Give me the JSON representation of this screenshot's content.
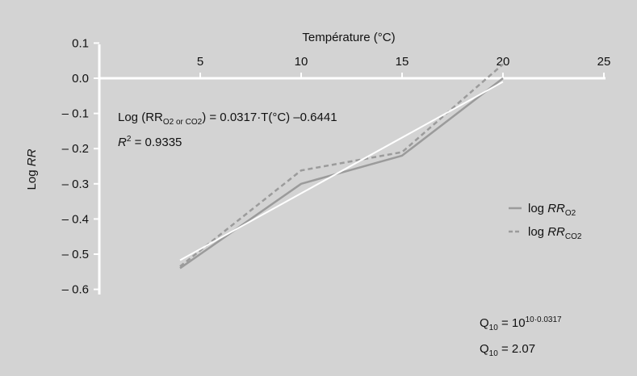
{
  "chart_data": {
    "type": "line",
    "xlabel": "Température (°C)",
    "ylabel_prefix": "Log ",
    "ylabel_italic": "RR",
    "x_axis_position": "top",
    "xlim": [
      0,
      25
    ],
    "ylim": [
      -0.6,
      0.1
    ],
    "x_ticks": [
      5,
      10,
      15,
      20,
      25
    ],
    "y_ticks": [
      0.1,
      0.0,
      -0.1,
      -0.2,
      -0.3,
      -0.4,
      -0.5,
      -0.6
    ],
    "y_tick_labels": [
      "0.1",
      "0.0",
      "– 0.1",
      "– 0.2",
      "– 0.3",
      "– 0.4",
      "– 0.5",
      "– 0.6"
    ],
    "background_color": "#d3d3d3",
    "series": [
      {
        "name_prefix": "log ",
        "name_italic": "RR",
        "name_sub": "O2",
        "style": "solid",
        "color": "#9b9b9b",
        "x": [
          4,
          10,
          15,
          20
        ],
        "y": [
          -0.54,
          -0.3,
          -0.22,
          0.0
        ]
      },
      {
        "name_prefix": "log ",
        "name_italic": "RR",
        "name_sub": "CO2",
        "style": "dashed",
        "color": "#9b9b9b",
        "x": [
          4,
          10,
          15,
          20
        ],
        "y": [
          -0.535,
          -0.262,
          -0.21,
          0.04
        ]
      }
    ],
    "fit_line": {
      "color": "#ffffff",
      "x": [
        4,
        20
      ],
      "y": [
        -0.5173,
        -0.0101
      ]
    },
    "equation": {
      "prefix": "Log (RR",
      "sub": "O2 or CO2",
      "suffix": ") = 0.0317·T(°C) –0.6441"
    },
    "r2": {
      "italic": "R",
      "sup": "2",
      "suffix": " = 0.9335"
    },
    "q10_line1": {
      "q": "Q",
      "q_sub": "10",
      "middle": " = 10",
      "exponent": "10·0.0317"
    },
    "q10_line2": {
      "q": "Q",
      "q_sub": "10",
      "suffix": " = 2.07"
    },
    "legend_position": "right"
  }
}
